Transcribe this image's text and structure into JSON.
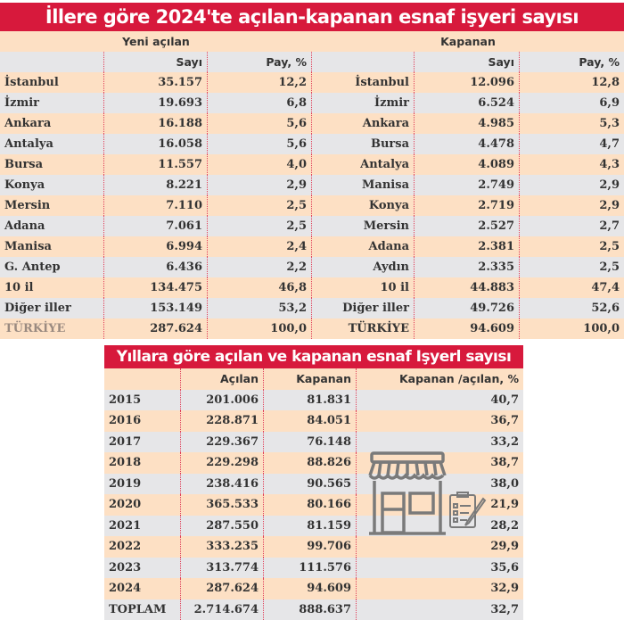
{
  "provinces_table": {
    "title": "İllere göre 2024'te açılan-kapanan esnaf işyeri sayısı",
    "opened": {
      "group_label": "Yeni açılan",
      "col_count": "Sayı",
      "col_share": "Pay, %",
      "rows": [
        [
          "İstanbul",
          "35.157",
          "12,2"
        ],
        [
          "İzmir",
          "19.693",
          "6,8"
        ],
        [
          "Ankara",
          "16.188",
          "5,6"
        ],
        [
          "Antalya",
          "16.058",
          "5,6"
        ],
        [
          "Bursa",
          "11.557",
          "4,0"
        ],
        [
          "Konya",
          "8.221",
          "2,9"
        ],
        [
          "Mersin",
          "7.110",
          "2,5"
        ],
        [
          "Adana",
          "7.061",
          "2,5"
        ],
        [
          "Manisa",
          "6.994",
          "2,4"
        ],
        [
          "G. Antep",
          "6.436",
          "2,2"
        ],
        [
          "10 il",
          "134.475",
          "46,8"
        ],
        [
          "Diğer iller",
          "153.149",
          "53,2"
        ],
        [
          "TÜRKİYE",
          "287.624",
          "100,0"
        ]
      ]
    },
    "closed": {
      "group_label": "Kapanan",
      "col_count": "Sayı",
      "col_share": "Pay, %",
      "rows": [
        [
          "İstanbul",
          "12.096",
          "12,8"
        ],
        [
          "İzmir",
          "6.524",
          "6,9"
        ],
        [
          "Ankara",
          "4.985",
          "5,3"
        ],
        [
          "Bursa",
          "4.478",
          "4,7"
        ],
        [
          "Antalya",
          "4.089",
          "4,3"
        ],
        [
          "Manisa",
          "2.749",
          "2,9"
        ],
        [
          "Konya",
          "2.719",
          "2,9"
        ],
        [
          "Mersin",
          "2.527",
          "2,7"
        ],
        [
          "Adana",
          "2.381",
          "2,5"
        ],
        [
          "Aydın",
          "2.335",
          "2,5"
        ],
        [
          "10 il",
          "44.883",
          "47,4"
        ],
        [
          "Diğer iller",
          "49.726",
          "52,6"
        ],
        [
          "TÜRKİYE",
          "94.609",
          "100,0"
        ]
      ]
    }
  },
  "years_table": {
    "title": "Yıllara göre açılan ve kapanan esnaf Işyerl sayısı",
    "headers": [
      "",
      "Açılan",
      "Kapanan",
      "Kapanan /açılan, %"
    ],
    "rows": [
      [
        "2015",
        "201.006",
        "81.831",
        "40,7"
      ],
      [
        "2016",
        "228.871",
        "84.051",
        "36,7"
      ],
      [
        "2017",
        "229.367",
        "76.148",
        "33,2"
      ],
      [
        "2018",
        "229.298",
        "88.826",
        "38,7"
      ],
      [
        "2019",
        "238.416",
        "90.565",
        "38,0"
      ],
      [
        "2020",
        "365.533",
        "80.166",
        "21,9"
      ],
      [
        "2021",
        "287.550",
        "81.159",
        "28,2"
      ],
      [
        "2022",
        "333.235",
        "99.706",
        "29,9"
      ],
      [
        "2023",
        "313.774",
        "111.576",
        "35,6"
      ],
      [
        "2024",
        "287.624",
        "94.609",
        "32,9"
      ],
      [
        "TOPLAM",
        "2.714.674",
        "888.637",
        "32,7"
      ]
    ]
  },
  "colors": {
    "title_red": "#d7193c",
    "row_peach": "#fde0c4",
    "row_gray": "#e6e6e8",
    "icon_gray": "#7a7a7a"
  },
  "icons": {
    "illustration": "shop-storefront-icon",
    "clipboard": "clipboard-checklist-icon"
  }
}
